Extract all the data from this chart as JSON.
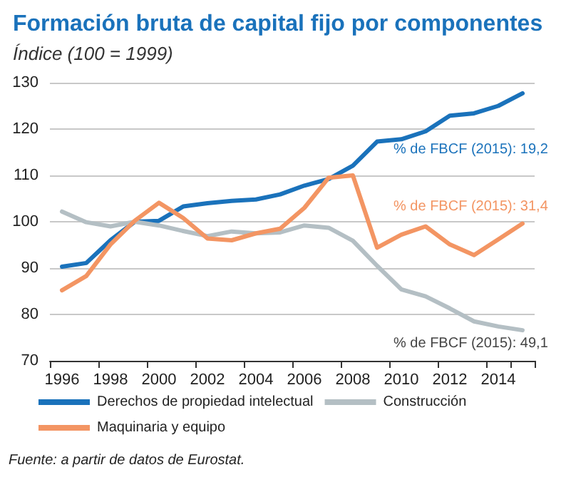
{
  "chart_data": {
    "type": "line",
    "title": "Formación bruta de capital fijo por componentes",
    "subtitle": "Índice (100 = 1999)",
    "categories": [
      "1996",
      null,
      "1998",
      null,
      "2000",
      null,
      "2002",
      null,
      "2004",
      null,
      "2006",
      null,
      "2008",
      null,
      "2010",
      null,
      "2012",
      null,
      "2014",
      null
    ],
    "series": [
      {
        "name": "Derechos de propiedad intelectual",
        "color": "#1a72bb",
        "values": [
          90.3,
          91.1,
          96,
          100,
          100.2,
          103.3,
          104.0,
          104.5,
          104.8,
          105.9,
          107.8,
          109.2,
          112.1,
          117.3,
          117.8,
          119.5,
          122.9,
          123.4,
          125,
          127.7
        ]
      },
      {
        "name": "Construcción",
        "color": "#b4bfc4",
        "values": [
          102.2,
          99.9,
          99.0,
          100,
          99.2,
          98.0,
          96.9,
          97.9,
          97.5,
          97.7,
          99.2,
          98.7,
          95.9,
          90.5,
          85.4,
          83.9,
          81.3,
          78.5,
          77.4,
          76.6
        ]
      },
      {
        "name": "Maquinaria y equipo",
        "color": "#f39563",
        "values": [
          85.2,
          88.3,
          95.1,
          100.2,
          104.1,
          100.8,
          96.4,
          96.0,
          97.5,
          98.5,
          103,
          109.5,
          110,
          94.4,
          97.2,
          99.0,
          95.1,
          92.8,
          96.2,
          99.6
        ]
      }
    ],
    "ylim": [
      70,
      130
    ],
    "yticks": [
      70,
      80,
      90,
      100,
      110,
      120,
      130
    ],
    "grid": "y",
    "legend": "bottom",
    "marker": "none",
    "line_style": "solid",
    "annotations": [
      "% de FBCF (2015): 19,2",
      "% de FBCF (2015): 49,1",
      "% de FBCF (2015): 31,4",
      "Fuente: a partir de datos de Eurostat."
    ]
  }
}
